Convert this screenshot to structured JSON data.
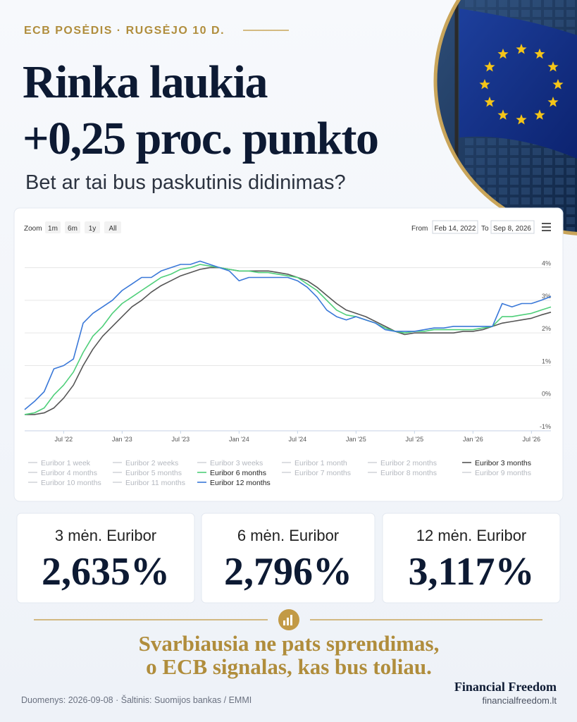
{
  "header": {
    "kicker": "ECB POSĖDIS · RUGSĖJO 10 D.",
    "title": [
      "Rinka laukia",
      "+0,25 proc. punkto"
    ],
    "subtitle": "Bet ar tai bus paskutinis didinimas?"
  },
  "chart_data": {
    "type": "line",
    "toolbar": {
      "zoom_label": "Zoom",
      "zoom_buttons": [
        "1m",
        "6m",
        "1y",
        "All"
      ],
      "from_label": "From",
      "from": "Feb 14, 2022",
      "to_label": "To",
      "to": "Sep 8, 2026"
    },
    "x": [
      "2022-03",
      "2022-04",
      "2022-05",
      "2022-06",
      "2022-07",
      "2022-08",
      "2022-09",
      "2022-10",
      "2022-11",
      "2022-12",
      "2023-01",
      "2023-02",
      "2023-03",
      "2023-04",
      "2023-05",
      "2023-06",
      "2023-07",
      "2023-08",
      "2023-09",
      "2023-10",
      "2023-11",
      "2023-12",
      "2024-01",
      "2024-02",
      "2024-03",
      "2024-04",
      "2024-05",
      "2024-06",
      "2024-07",
      "2024-08",
      "2024-09",
      "2024-10",
      "2024-11",
      "2024-12",
      "2025-01",
      "2025-02",
      "2025-03",
      "2025-04",
      "2025-05",
      "2025-06",
      "2025-07",
      "2025-08",
      "2025-09",
      "2025-10",
      "2025-11",
      "2025-12",
      "2026-01",
      "2026-02",
      "2026-03",
      "2026-04",
      "2026-05",
      "2026-06",
      "2026-07",
      "2026-08",
      "2026-09"
    ],
    "xlim": [
      "2022-03",
      "2026-09"
    ],
    "xticks": [
      {
        "value": "2022-07",
        "label": "Jul '22"
      },
      {
        "value": "2023-01",
        "label": "Jan '23"
      },
      {
        "value": "2023-07",
        "label": "Jul '23"
      },
      {
        "value": "2024-01",
        "label": "Jan '24"
      },
      {
        "value": "2024-07",
        "label": "Jul '24"
      },
      {
        "value": "2025-01",
        "label": "Jan '25"
      },
      {
        "value": "2025-07",
        "label": "Jul '25"
      },
      {
        "value": "2026-01",
        "label": "Jan '26"
      },
      {
        "value": "2026-07",
        "label": "Jul '26"
      }
    ],
    "ylim": [
      -1,
      4.9
    ],
    "yticks": [
      {
        "value": -1,
        "label": "-1%"
      },
      {
        "value": 0,
        "label": "0%"
      },
      {
        "value": 1,
        "label": "1%"
      },
      {
        "value": 2,
        "label": "2%"
      },
      {
        "value": 3,
        "label": "3%"
      },
      {
        "value": 4,
        "label": "4%"
      }
    ],
    "grid": true,
    "series": [
      {
        "name": "Euribor 1 week",
        "visible": false
      },
      {
        "name": "Euribor 2 weeks",
        "visible": false
      },
      {
        "name": "Euribor 3 weeks",
        "visible": false
      },
      {
        "name": "Euribor 1 month",
        "visible": false
      },
      {
        "name": "Euribor 2 months",
        "visible": false
      },
      {
        "name": "Euribor 3 months",
        "color": "#555555",
        "visible": true,
        "values": [
          -0.5,
          -0.5,
          -0.45,
          -0.3,
          0,
          0.4,
          1.0,
          1.5,
          1.9,
          2.2,
          2.5,
          2.8,
          3.0,
          3.25,
          3.45,
          3.6,
          3.75,
          3.85,
          3.95,
          4.0,
          4.0,
          3.95,
          3.9,
          3.9,
          3.9,
          3.9,
          3.85,
          3.8,
          3.7,
          3.6,
          3.4,
          3.15,
          2.9,
          2.7,
          2.6,
          2.5,
          2.35,
          2.2,
          2.05,
          1.95,
          2.0,
          2.0,
          2.0,
          2.0,
          2.0,
          2.05,
          2.05,
          2.1,
          2.2,
          2.3,
          2.35,
          2.4,
          2.45,
          2.55,
          2.635
        ]
      },
      {
        "name": "Euribor 4 months",
        "visible": false
      },
      {
        "name": "Euribor 5 months",
        "visible": false
      },
      {
        "name": "Euribor 6 months",
        "color": "#4fcf7a",
        "visible": true,
        "values": [
          -0.5,
          -0.45,
          -0.3,
          0.1,
          0.4,
          0.8,
          1.4,
          1.9,
          2.2,
          2.6,
          2.9,
          3.1,
          3.3,
          3.5,
          3.7,
          3.8,
          3.95,
          4.0,
          4.1,
          4.05,
          4.0,
          3.95,
          3.9,
          3.9,
          3.85,
          3.85,
          3.8,
          3.75,
          3.7,
          3.5,
          3.3,
          3.0,
          2.7,
          2.55,
          2.5,
          2.4,
          2.3,
          2.15,
          2.05,
          2.0,
          2.05,
          2.05,
          2.1,
          2.1,
          2.1,
          2.1,
          2.1,
          2.15,
          2.2,
          2.5,
          2.5,
          2.55,
          2.6,
          2.7,
          2.796
        ]
      },
      {
        "name": "Euribor 7 months",
        "visible": false
      },
      {
        "name": "Euribor 8 months",
        "visible": false
      },
      {
        "name": "Euribor 9 months",
        "visible": false
      },
      {
        "name": "Euribor 10 months",
        "visible": false
      },
      {
        "name": "Euribor 11 months",
        "visible": false
      },
      {
        "name": "Euribor 12 months",
        "color": "#3a78d8",
        "visible": true,
        "values": [
          -0.35,
          -0.1,
          0.2,
          0.9,
          1.0,
          1.2,
          2.3,
          2.6,
          2.8,
          3.0,
          3.3,
          3.5,
          3.7,
          3.7,
          3.9,
          4.0,
          4.1,
          4.1,
          4.2,
          4.1,
          4.0,
          3.9,
          3.6,
          3.7,
          3.7,
          3.7,
          3.7,
          3.7,
          3.6,
          3.4,
          3.1,
          2.7,
          2.5,
          2.4,
          2.5,
          2.4,
          2.3,
          2.1,
          2.05,
          2.05,
          2.05,
          2.1,
          2.15,
          2.15,
          2.2,
          2.2,
          2.2,
          2.2,
          2.2,
          2.9,
          2.8,
          2.9,
          2.9,
          3.0,
          3.117
        ]
      }
    ]
  },
  "cards": [
    {
      "label": "3 mėn. Euribor",
      "value": "2,635%"
    },
    {
      "label": "6 mėn. Euribor",
      "value": "2,796%"
    },
    {
      "label": "12 mėn. Euribor",
      "value": "3,117%"
    }
  ],
  "quote": [
    "Svarbiausia ne pats sprendimas,",
    "o ECB signalas, kas bus toliau."
  ],
  "footer": {
    "source": "Duomenys: 2026-09-08 · Šaltinis: Suomijos bankas / EMMI",
    "brand": "Financial Freedom",
    "url": "financialfreedom.lt"
  }
}
